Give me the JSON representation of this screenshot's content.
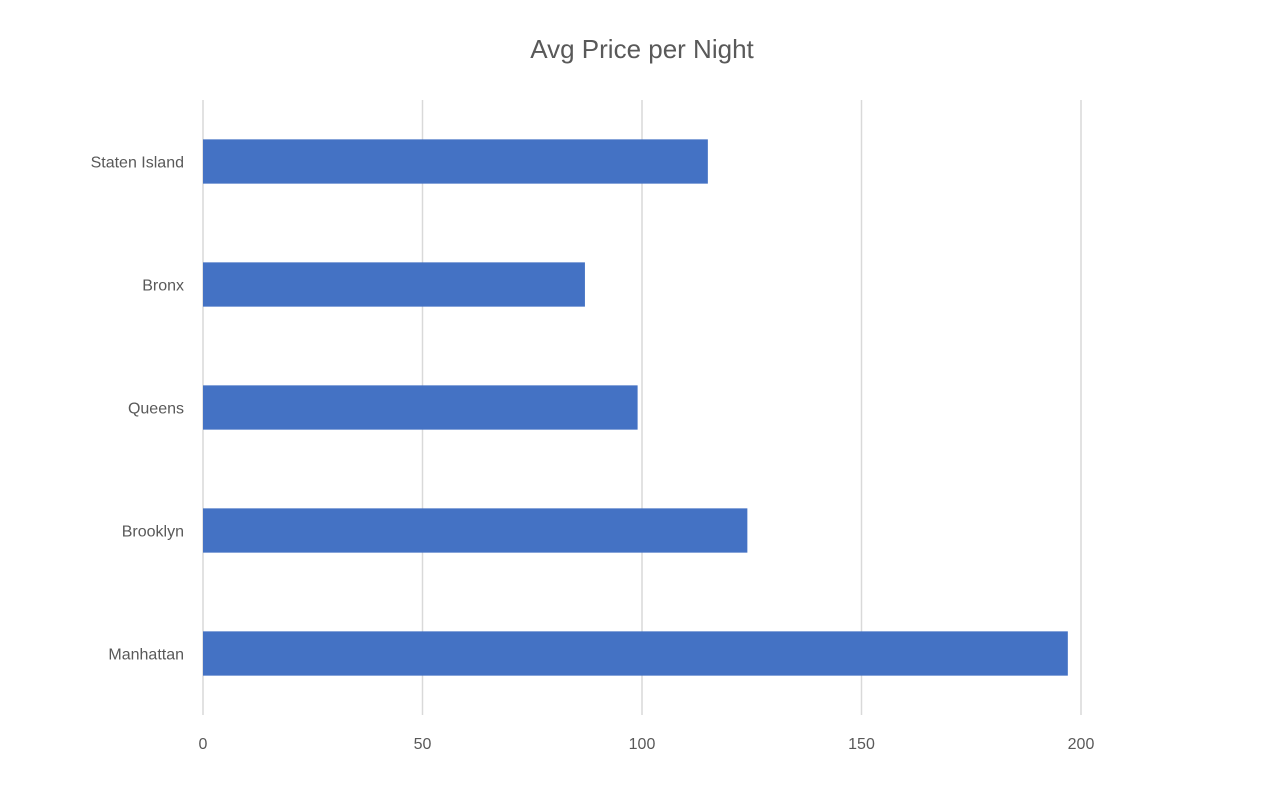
{
  "chart_data": {
    "type": "bar",
    "orientation": "horizontal",
    "title": "Avg Price per Night",
    "categories": [
      "Staten Island",
      "Bronx",
      "Queens",
      "Brooklyn",
      "Manhattan"
    ],
    "values": [
      115,
      87,
      99,
      124,
      197
    ],
    "xlim": [
      0,
      200
    ],
    "x_ticks": [
      0,
      50,
      100,
      150,
      200
    ],
    "x_tick_labels": [
      "0",
      "50",
      "100",
      "150",
      "200"
    ],
    "xlabel": "",
    "ylabel": "",
    "grid": "vertical",
    "legend": "none",
    "bar_color": "#4472C4",
    "grid_color": "#d9d9d9"
  }
}
